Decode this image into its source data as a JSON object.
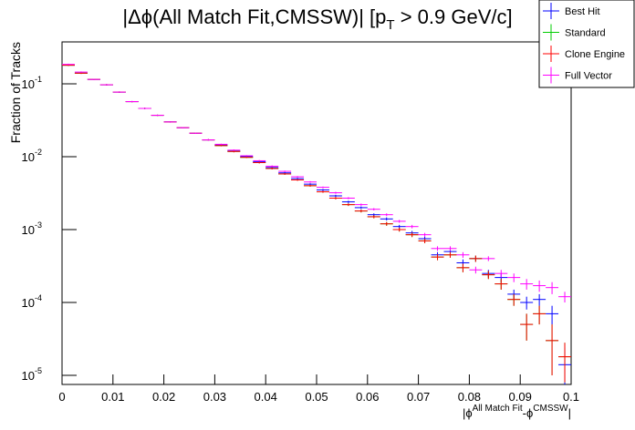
{
  "chart_data": {
    "type": "errorbar-histogram",
    "title": "|Δϕ(All Match Fit,CMSSW)| [p",
    "title_sub": "T",
    "title_rest": " > 0.9 GeV/c]",
    "ylabel": "Fraction of Tracks",
    "xlabel_parts": [
      "|ϕ",
      "All Match Fit",
      "-ϕ",
      "CMSSW",
      "|"
    ],
    "log_y": true,
    "legend_position": "top-right",
    "bins": [
      0,
      0.0025,
      0.005,
      0.0075,
      0.01,
      0.0125,
      0.015,
      0.0175,
      0.02,
      0.0225,
      0.025,
      0.0275,
      0.03,
      0.0325,
      0.035,
      0.0375,
      0.04,
      0.0425,
      0.045,
      0.0475,
      0.05,
      0.0525,
      0.055,
      0.0575,
      0.06,
      0.0625,
      0.065,
      0.0675,
      0.07,
      0.0725,
      0.075,
      0.0775,
      0.08,
      0.0825,
      0.085,
      0.0875,
      0.09,
      0.0925,
      0.095,
      0.0975,
      0.1
    ],
    "xlim": [
      0,
      0.1
    ],
    "xticks": [
      0,
      0.01,
      0.02,
      0.03,
      0.04,
      0.05,
      0.06,
      0.07,
      0.08,
      0.09,
      0.1
    ],
    "ylim": [
      7.5e-06,
      0.376
    ],
    "yticks": [
      {
        "value": 1e-05,
        "label": "10",
        "exponent": "-5"
      },
      {
        "value": 0.0001,
        "label": "10",
        "exponent": "-4"
      },
      {
        "value": 0.001,
        "label": "10",
        "exponent": "-3"
      },
      {
        "value": 0.01,
        "label": "10",
        "exponent": "-2"
      },
      {
        "value": 0.1,
        "label": "10",
        "exponent": "-1"
      }
    ],
    "series": [
      {
        "name": "Best Hit",
        "color": "#0000ff",
        "values": [
          0.18,
          0.14,
          0.115,
          0.097,
          0.077,
          0.057,
          0.046,
          0.037,
          0.03,
          0.025,
          0.021,
          0.017,
          0.0145,
          0.012,
          0.01,
          0.0085,
          0.0071,
          0.006,
          0.005,
          0.0042,
          0.0035,
          0.0029,
          0.0024,
          0.002,
          0.0016,
          0.0014,
          0.0011,
          0.0009,
          0.00075,
          0.00045,
          0.0005,
          0.00035,
          0.0004,
          0.00025,
          0.00022,
          0.00013,
          0.0001,
          0.00011,
          7e-05,
          1.4e-05
        ],
        "errors": [
          0.004,
          0.003,
          0.002,
          0.002,
          0.0015,
          0.001,
          0.0009,
          0.0007,
          0.0006,
          0.0005,
          0.0004,
          0.0004,
          0.0003,
          0.0003,
          0.0002,
          0.0002,
          0.0002,
          0.00015,
          0.00013,
          0.00012,
          0.0001,
          0.0001,
          9e-05,
          8e-05,
          7e-05,
          7e-05,
          6e-05,
          6e-05,
          5e-05,
          4e-05,
          4e-05,
          4e-05,
          4e-05,
          3e-05,
          3e-05,
          2e-05,
          2e-05,
          2e-05,
          2e-05,
          1e-05
        ]
      },
      {
        "name": "Standard",
        "color": "#00cc00",
        "values": [
          0.18,
          0.14,
          0.115,
          0.097,
          0.077,
          0.057,
          0.046,
          0.037,
          0.03,
          0.025,
          0.021,
          0.017,
          0.0142,
          0.0118,
          0.0098,
          0.0083,
          0.0069,
          0.0058,
          0.0048,
          0.004,
          0.0033,
          0.0027,
          0.0022,
          0.0018,
          0.0015,
          0.0012,
          0.001,
          0.00085,
          0.0007,
          0.00042,
          0.00045,
          0.0003,
          0.0004,
          0.00024,
          0.00018,
          0.00011,
          5e-05,
          7e-05,
          3e-05,
          1.8e-05
        ],
        "errors": [
          0.004,
          0.003,
          0.002,
          0.002,
          0.0015,
          0.001,
          0.0009,
          0.0007,
          0.0006,
          0.0005,
          0.0004,
          0.0004,
          0.0003,
          0.0003,
          0.0002,
          0.0002,
          0.0002,
          0.00015,
          0.00013,
          0.00012,
          0.0001,
          0.0001,
          9e-05,
          8e-05,
          7e-05,
          7e-05,
          6e-05,
          6e-05,
          5e-05,
          4e-05,
          4e-05,
          4e-05,
          4e-05,
          3e-05,
          3e-05,
          2e-05,
          2e-05,
          2e-05,
          2e-05,
          1e-05
        ]
      },
      {
        "name": "Clone Engine",
        "color": "#ff0000",
        "values": [
          0.18,
          0.14,
          0.115,
          0.097,
          0.077,
          0.057,
          0.046,
          0.037,
          0.03,
          0.025,
          0.021,
          0.017,
          0.0142,
          0.0118,
          0.0098,
          0.0083,
          0.0069,
          0.0058,
          0.0048,
          0.004,
          0.0033,
          0.0027,
          0.0022,
          0.0018,
          0.0015,
          0.0012,
          0.001,
          0.00085,
          0.0007,
          0.00042,
          0.00045,
          0.0003,
          0.0004,
          0.00024,
          0.00018,
          0.00011,
          5e-05,
          7e-05,
          3e-05,
          1.8e-05
        ],
        "errors": [
          0.004,
          0.003,
          0.002,
          0.002,
          0.0015,
          0.001,
          0.0009,
          0.0007,
          0.0006,
          0.0005,
          0.0004,
          0.0004,
          0.0003,
          0.0003,
          0.0002,
          0.0002,
          0.0002,
          0.00015,
          0.00013,
          0.00012,
          0.0001,
          0.0001,
          9e-05,
          8e-05,
          7e-05,
          7e-05,
          6e-05,
          6e-05,
          5e-05,
          4e-05,
          4e-05,
          4e-05,
          4e-05,
          3e-05,
          3e-05,
          2e-05,
          2e-05,
          2e-05,
          2e-05,
          1e-05
        ]
      },
      {
        "name": "Full Vector",
        "color": "#ff00ff",
        "values": [
          0.185,
          0.145,
          0.115,
          0.097,
          0.077,
          0.057,
          0.046,
          0.037,
          0.03,
          0.025,
          0.021,
          0.017,
          0.0148,
          0.0123,
          0.0103,
          0.0088,
          0.0074,
          0.0063,
          0.0053,
          0.0045,
          0.0038,
          0.0032,
          0.0027,
          0.0022,
          0.0019,
          0.0016,
          0.0013,
          0.0011,
          0.00085,
          0.00055,
          0.00055,
          0.00045,
          0.00028,
          0.0004,
          0.00025,
          0.00022,
          0.00018,
          0.00017,
          0.00016,
          0.00012
        ],
        "errors": [
          0.004,
          0.003,
          0.002,
          0.002,
          0.0015,
          0.001,
          0.0009,
          0.0007,
          0.0006,
          0.0005,
          0.0004,
          0.0004,
          0.0003,
          0.0003,
          0.0002,
          0.0002,
          0.0002,
          0.00015,
          0.00013,
          0.00012,
          0.0001,
          0.0001,
          9e-05,
          8e-05,
          7e-05,
          7e-05,
          6e-05,
          6e-05,
          5e-05,
          4e-05,
          4e-05,
          4e-05,
          3e-05,
          3e-05,
          3e-05,
          3e-05,
          3e-05,
          3e-05,
          3e-05,
          2e-05
        ]
      }
    ]
  }
}
